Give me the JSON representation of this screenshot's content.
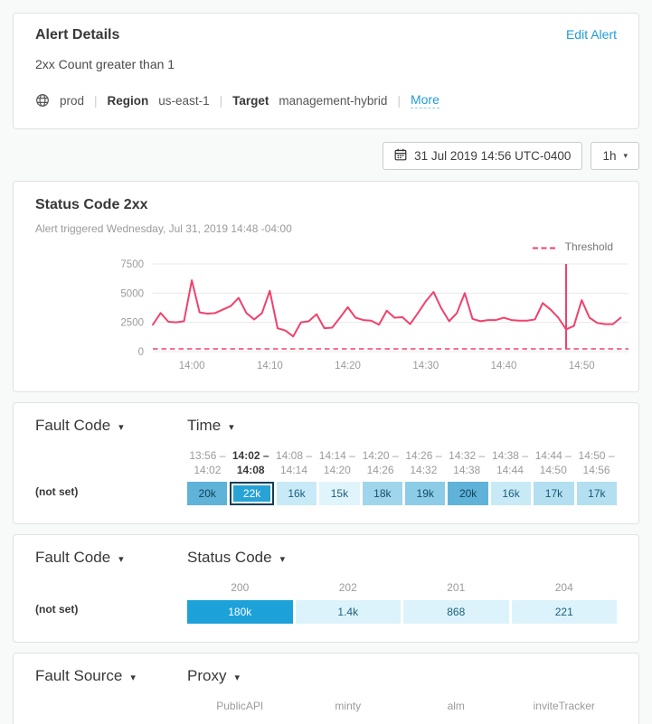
{
  "icons": {
    "caret_down": "▾"
  },
  "colors": {
    "accent_blue": "#1e9cd7",
    "line_pink": "#f0426b",
    "grid_gray": "#e8e8e8",
    "axis_label_gray": "#9b9b9b"
  },
  "alert_card": {
    "title": "Alert Details",
    "edit_label": "Edit Alert",
    "condition": "2xx Count greater than 1",
    "environment": "prod",
    "separator": "|",
    "region_label": "Region",
    "region_value": "us-east-1",
    "target_label": "Target",
    "target_value": "management-hybrid",
    "more_label": "More"
  },
  "time_controls": {
    "datetime_label": "31 Jul 2019 14:56 UTC-0400",
    "range_label": "1h"
  },
  "chart_card": {
    "title": "Status Code 2xx",
    "subtitle": "Alert triggered Wednesday, Jul 31, 2019 14:48 -04:00",
    "legend_label": "Threshold"
  },
  "chart_data": {
    "type": "line",
    "title": "Status Code 2xx",
    "xlabel": "",
    "ylabel": "",
    "ylim": [
      0,
      7500
    ],
    "y_ticks": [
      0,
      2500,
      5000,
      7500
    ],
    "x_tick_labels": [
      "14:00",
      "14:10",
      "14:20",
      "14:30",
      "14:40",
      "14:50"
    ],
    "x_tick_minute_offsets": [
      5,
      15,
      25,
      35,
      45,
      55
    ],
    "x_domain_minute_offsets": [
      0,
      61
    ],
    "x_start_time": "13:55",
    "x_step_minutes": 1,
    "grid": "horizontal-only",
    "legend_position": "top-right",
    "threshold_value": 1,
    "alert_time": "14:48",
    "alert_minute_offset": 53,
    "line_color": "#f0426b",
    "threshold_color": "#f0426b",
    "series": [
      {
        "name": "Status Code 2xx count",
        "values": [
          2300,
          3300,
          2550,
          2500,
          2600,
          6100,
          3350,
          3250,
          3300,
          3600,
          3900,
          4600,
          3300,
          2750,
          3300,
          5200,
          2000,
          1800,
          1300,
          2500,
          2600,
          3200,
          2000,
          2050,
          2900,
          3800,
          2900,
          2700,
          2650,
          2300,
          3500,
          2900,
          2950,
          2350,
          3300,
          4300,
          5100,
          3700,
          2600,
          3300,
          5000,
          2800,
          2600,
          2700,
          2700,
          2900,
          2700,
          2650,
          2650,
          2750,
          4150,
          3600,
          2900,
          1900,
          2200,
          4400,
          2900,
          2450,
          2350,
          2350,
          2900
        ]
      }
    ]
  },
  "heatmaps": [
    {
      "row_dimension": "Fault Code",
      "col_dimension": "Time",
      "two_line_headers": true,
      "columns": [
        {
          "label": "13:56 – 14:02",
          "selected": false
        },
        {
          "label": "14:02 – 14:08",
          "selected": true
        },
        {
          "label": "14:08 – 14:14",
          "selected": false
        },
        {
          "label": "14:14 – 14:20",
          "selected": false
        },
        {
          "label": "14:20 – 14:26",
          "selected": false
        },
        {
          "label": "14:26 – 14:32",
          "selected": false
        },
        {
          "label": "14:32 – 14:38",
          "selected": false
        },
        {
          "label": "14:38 – 14:44",
          "selected": false
        },
        {
          "label": "14:44 – 14:50",
          "selected": false
        },
        {
          "label": "14:50 – 14:56",
          "selected": false
        }
      ],
      "rows": [
        {
          "label": "(not set)",
          "cells": [
            {
              "value": "20k",
              "bg": "#5fb3d9",
              "fg": "#143f57",
              "selected": false
            },
            {
              "value": "22k",
              "bg": "#28a3d6",
              "fg": "#ffffff",
              "selected": true
            },
            {
              "value": "16k",
              "bg": "#c8eaf6",
              "fg": "#1c5f7d",
              "selected": false
            },
            {
              "value": "15k",
              "bg": "#e0f4fb",
              "fg": "#1c5f7d",
              "selected": false
            },
            {
              "value": "18k",
              "bg": "#9fd6ec",
              "fg": "#174e6a",
              "selected": false
            },
            {
              "value": "19k",
              "bg": "#8ccce7",
              "fg": "#164a64",
              "selected": false
            },
            {
              "value": "20k",
              "bg": "#5fb3d9",
              "fg": "#143f57",
              "selected": false
            },
            {
              "value": "16k",
              "bg": "#c8eaf6",
              "fg": "#1c5f7d",
              "selected": false
            },
            {
              "value": "17k",
              "bg": "#b3dff1",
              "fg": "#1a5873",
              "selected": false
            },
            {
              "value": "17k",
              "bg": "#b3dff1",
              "fg": "#1a5873",
              "selected": false
            }
          ]
        }
      ]
    },
    {
      "row_dimension": "Fault Code",
      "col_dimension": "Status Code",
      "two_line_headers": false,
      "columns": [
        {
          "label": "200",
          "selected": false
        },
        {
          "label": "202",
          "selected": false
        },
        {
          "label": "201",
          "selected": false
        },
        {
          "label": "204",
          "selected": false
        }
      ],
      "rows": [
        {
          "label": "(not set)",
          "cells": [
            {
              "value": "180k",
              "bg": "#1ca1d9",
              "fg": "#ffffff",
              "selected": false
            },
            {
              "value": "1.4k",
              "bg": "#dcf3fb",
              "fg": "#1c5f7d",
              "selected": false
            },
            {
              "value": "868",
              "bg": "#dcf3fb",
              "fg": "#1c5f7d",
              "selected": false
            },
            {
              "value": "221",
              "bg": "#dcf3fb",
              "fg": "#1c5f7d",
              "selected": false
            }
          ]
        }
      ]
    },
    {
      "row_dimension": "Fault Source",
      "col_dimension": "Proxy",
      "two_line_headers": false,
      "columns": [
        {
          "label": "PublicAPI",
          "selected": false
        },
        {
          "label": "minty",
          "selected": false
        },
        {
          "label": "alm",
          "selected": false
        },
        {
          "label": "inviteTracker",
          "selected": false
        }
      ],
      "rows": []
    }
  ]
}
